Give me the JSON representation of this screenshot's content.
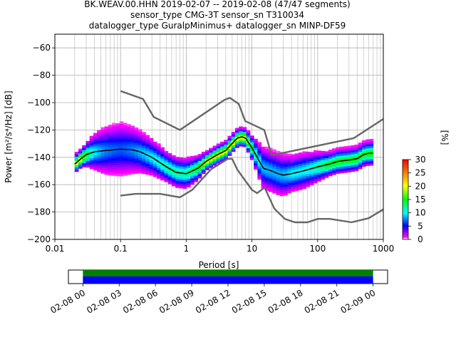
{
  "chart_data": [
    {
      "type": "heatmap",
      "title_lines": [
        "BK.WEAV.00.HHN   2019-02-07 -- 2019-02-08  (47/47 segments)",
        "sensor_type CMG-3T sensor_sn T310034",
        "datalogger_type GuralpMinimus+ datalogger_sn MINP-DF59"
      ],
      "xlabel": "Period [s]",
      "ylabel": "Power [m²/s⁴/Hz] [dB]",
      "x_scale": "log",
      "xlim": [
        0.01,
        1000
      ],
      "ylim": [
        -200,
        -50
      ],
      "x_ticks": [
        {
          "v": 0.01,
          "label": "0.01"
        },
        {
          "v": 0.1,
          "label": "0.1"
        },
        {
          "v": 1,
          "label": "1"
        },
        {
          "v": 10,
          "label": "10"
        },
        {
          "v": 100,
          "label": "100"
        },
        {
          "v": 1000,
          "label": "1000"
        }
      ],
      "y_ticks": [
        {
          "v": -60,
          "label": "−60"
        },
        {
          "v": -80,
          "label": "−80"
        },
        {
          "v": -100,
          "label": "−100"
        },
        {
          "v": -120,
          "label": "−120"
        },
        {
          "v": -140,
          "label": "−140"
        },
        {
          "v": -160,
          "label": "−160"
        },
        {
          "v": -180,
          "label": "−180"
        },
        {
          "v": -200,
          "label": "−200"
        }
      ],
      "grid": true,
      "noise_model_high": {
        "x": [
          0.1,
          0.22,
          0.32,
          0.8,
          3.8,
          4.6,
          6.3,
          7.9,
          15.4,
          20,
          354.8,
          1000
        ],
        "y": [
          -91.5,
          -97.4,
          -110.5,
          -120,
          -98,
          -96.5,
          -101,
          -113.5,
          -120,
          -138.5,
          -126,
          -112
        ]
      },
      "noise_model_low": {
        "x": [
          0.1,
          0.17,
          0.4,
          0.8,
          1.24,
          2.4,
          4.3,
          5,
          6,
          10,
          12,
          15.6,
          21.9,
          31.6,
          45,
          70,
          101,
          154,
          328,
          600,
          1000
        ],
        "y": [
          -168,
          -166.7,
          -166.7,
          -169.2,
          -163.7,
          -148.6,
          -141.1,
          -141.1,
          -149,
          -163.8,
          -166.2,
          -162.1,
          -177.5,
          -185,
          -187.5,
          -187.5,
          -185,
          -185,
          -187.5,
          -184.5,
          -178
        ]
      },
      "median": {
        "x": [
          0.02,
          0.025,
          0.03,
          0.04,
          0.06,
          0.1,
          0.15,
          0.2,
          0.3,
          0.5,
          0.7,
          1,
          1.5,
          2,
          3,
          4,
          5,
          6,
          7,
          8,
          10,
          13,
          15,
          20,
          25,
          30,
          40,
          60,
          100,
          150,
          200,
          300,
          400,
          500,
          600,
          700
        ],
        "y": [
          -145,
          -141,
          -138,
          -136,
          -135,
          -134,
          -134.5,
          -136,
          -140,
          -147,
          -151,
          -152,
          -148,
          -143,
          -138,
          -135,
          -130,
          -126,
          -125,
          -126,
          -133,
          -143,
          -148,
          -150,
          -152,
          -153,
          -152,
          -150,
          -147,
          -145,
          -143,
          -142,
          -141,
          -138,
          -137,
          -137
        ]
      },
      "spread": {
        "x": [
          0.02,
          0.025,
          0.03,
          0.04,
          0.06,
          0.1,
          0.15,
          0.2,
          0.3,
          0.5,
          0.7,
          1,
          1.5,
          2,
          3,
          4,
          5,
          6,
          7,
          8,
          10,
          13,
          15,
          20,
          25,
          30,
          40,
          60,
          100,
          150,
          200,
          300,
          400,
          500,
          600,
          700
        ],
        "d": [
          3,
          3,
          4,
          6,
          8,
          9,
          8,
          7,
          6,
          5,
          5,
          5,
          4,
          3,
          3,
          3,
          3,
          3,
          3,
          3,
          4,
          6,
          7,
          7,
          7,
          7,
          6,
          6,
          5,
          4,
          4,
          4,
          4,
          4,
          4,
          4
        ]
      },
      "colorbar": {
        "label": "[%]",
        "min": 0,
        "max": 30,
        "ticks": [
          {
            "v": 0,
            "label": "0"
          },
          {
            "v": 5,
            "label": "5"
          },
          {
            "v": 10,
            "label": "10"
          },
          {
            "v": 15,
            "label": "15"
          },
          {
            "v": 20,
            "label": "20"
          },
          {
            "v": 25,
            "label": "25"
          },
          {
            "v": 30,
            "label": "30"
          }
        ],
        "stops": [
          "#ffffff",
          "#ff00ff",
          "#0000ff",
          "#00ffff",
          "#00ff00",
          "#ffff00",
          "#ff8000",
          "#ff0000"
        ]
      }
    },
    {
      "type": "timeline",
      "x_ticks": [
        "02-08 00",
        "02-08 03",
        "02-08 06",
        "02-08 09",
        "02-08 12",
        "02-08 15",
        "02-08 18",
        "02-08 21",
        "02-09 00"
      ],
      "tick_hours": [
        0,
        3,
        6,
        9,
        12,
        15,
        18,
        21,
        24
      ],
      "range_hours": [
        -1.2,
        25.2
      ],
      "coverage_hours": [
        0,
        24
      ],
      "colors": {
        "top": "#008000",
        "bottom": "#0000ff"
      }
    }
  ]
}
